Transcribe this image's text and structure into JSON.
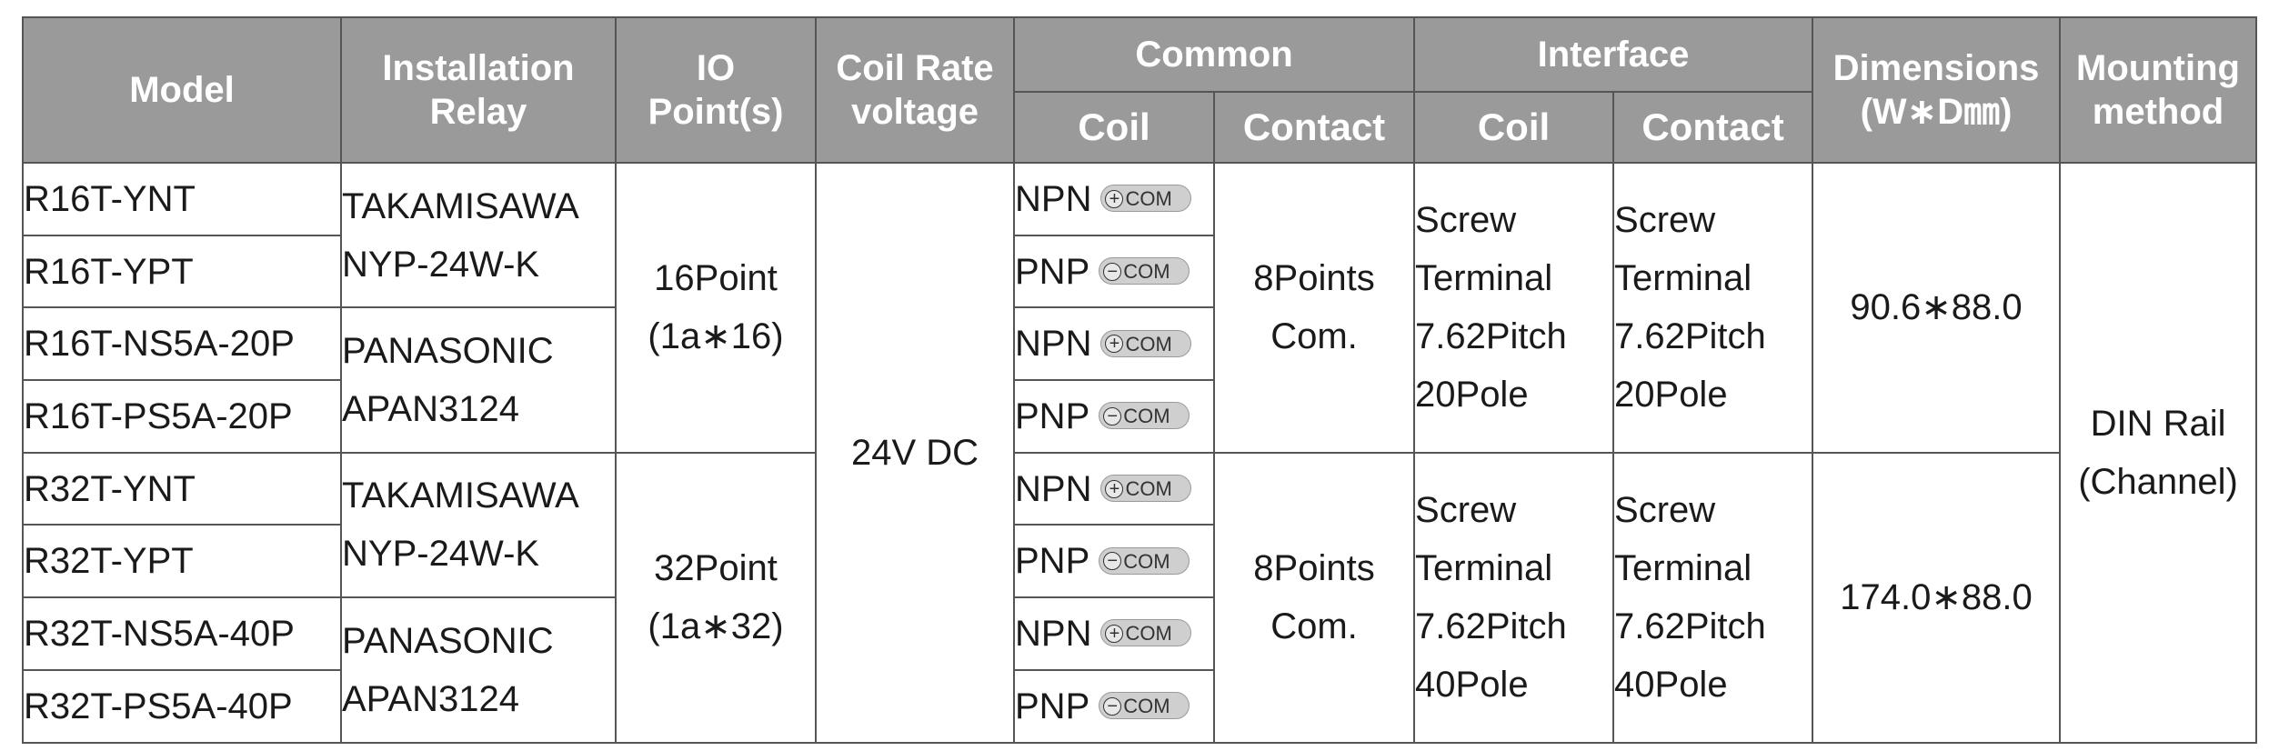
{
  "headers": {
    "model": "Model",
    "relay_line1": "Installation",
    "relay_line2": "Relay",
    "io_line1": "IO",
    "io_line2": "Point(s)",
    "coil_rate_line1": "Coil Rate",
    "coil_rate_line2": "voltage",
    "common": "Common",
    "interface": "Interface",
    "coil": "Coil",
    "contact": "Contact",
    "dimensions_line1": "Dimensions",
    "dimensions_line2": "(W∗D㎜)",
    "mounting_line1": "Mounting",
    "mounting_line2": "method"
  },
  "models": [
    "R16T-YNT",
    "R16T-YPT",
    "R16T-NS5A-20P",
    "R16T-PS5A-20P",
    "R32T-YNT",
    "R32T-YPT",
    "R32T-NS5A-40P",
    "R32T-PS5A-40P"
  ],
  "relays": [
    {
      "line1": "TAKAMISAWA",
      "line2": "NYP-24W-K"
    },
    {
      "line1": "PANASONIC",
      "line2": "APAN3124"
    },
    {
      "line1": "TAKAMISAWA",
      "line2": "NYP-24W-K"
    },
    {
      "line1": "PANASONIC",
      "line2": "APAN3124"
    }
  ],
  "io_points": [
    {
      "line1": "16Point",
      "line2": "(1a∗16)"
    },
    {
      "line1": "32Point",
      "line2": "(1a∗32)"
    }
  ],
  "coil_voltage": "24V DC",
  "common_coil": [
    {
      "type": "NPN",
      "sign": "+",
      "label": "COM"
    },
    {
      "type": "PNP",
      "sign": "−",
      "label": "COM"
    },
    {
      "type": "NPN",
      "sign": "+",
      "label": "COM"
    },
    {
      "type": "PNP",
      "sign": "−",
      "label": "COM"
    },
    {
      "type": "NPN",
      "sign": "+",
      "label": "COM"
    },
    {
      "type": "PNP",
      "sign": "−",
      "label": "COM"
    },
    {
      "type": "NPN",
      "sign": "+",
      "label": "COM"
    },
    {
      "type": "PNP",
      "sign": "−",
      "label": "COM"
    }
  ],
  "common_contact": [
    {
      "line1": "8Points",
      "line2": "Com."
    },
    {
      "line1": "8Points",
      "line2": "Com."
    }
  ],
  "interface_groups": [
    {
      "coil": [
        "Screw",
        "Terminal",
        "7.62Pitch",
        "20Pole"
      ],
      "contact": [
        "Screw",
        "Terminal",
        "7.62Pitch",
        "20Pole"
      ]
    },
    {
      "coil": [
        "Screw",
        "Terminal",
        "7.62Pitch",
        "40Pole"
      ],
      "contact": [
        "Screw",
        "Terminal",
        "7.62Pitch",
        "40Pole"
      ]
    }
  ],
  "dimensions": [
    "90.6∗88.0",
    "174.0∗88.0"
  ],
  "mounting": {
    "line1": "DIN Rail",
    "line2": "(Channel)"
  },
  "colors": {
    "header_bg": "#9a9a9a",
    "model_col_bg": "#dcdcdc",
    "border": "#555555"
  }
}
